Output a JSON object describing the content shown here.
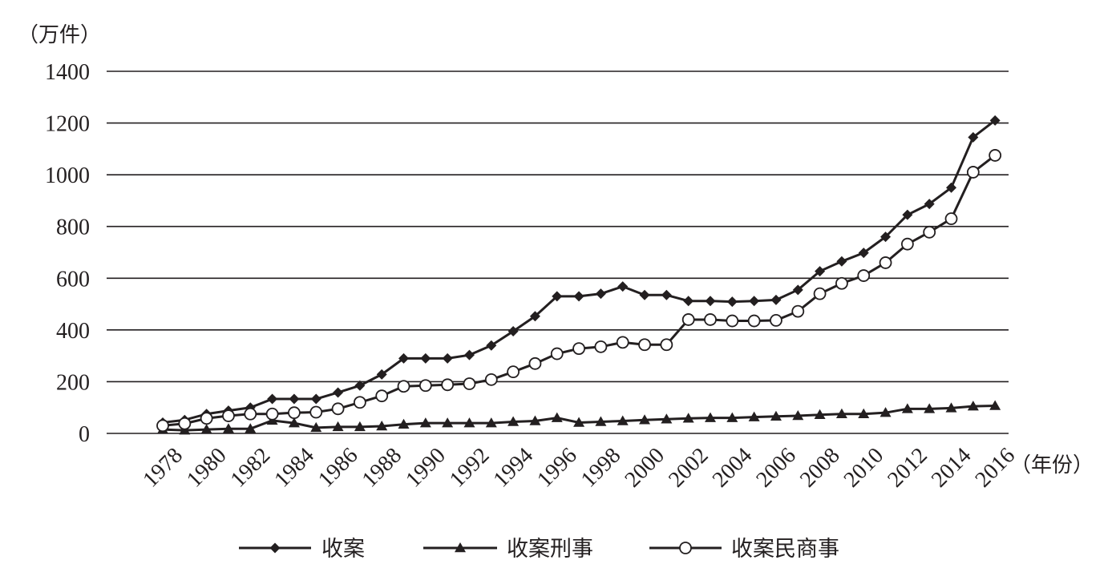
{
  "chart_data": {
    "type": "line",
    "ylabel": "（万件）",
    "xlabel": "（年份）",
    "ylim": [
      0,
      1400
    ],
    "yticks": [
      0,
      200,
      400,
      600,
      800,
      1000,
      1200,
      1400
    ],
    "xticks": [
      "1978",
      "1980",
      "1982",
      "1984",
      "1986",
      "1988",
      "1990",
      "1992",
      "1994",
      "1996",
      "1998",
      "2000",
      "2002",
      "2004",
      "2006",
      "2008",
      "2010",
      "2012",
      "2014",
      "2016"
    ],
    "x": [
      1978,
      1979,
      1980,
      1981,
      1982,
      1983,
      1984,
      1985,
      1986,
      1987,
      1988,
      1989,
      1990,
      1991,
      1992,
      1993,
      1994,
      1995,
      1996,
      1997,
      1998,
      1999,
      2000,
      2001,
      2002,
      2003,
      2004,
      2005,
      2006,
      2007,
      2008,
      2009,
      2010,
      2011,
      2012,
      2013,
      2014,
      2015,
      2016
    ],
    "grid": "horizontal",
    "legend_position": "bottom",
    "series": [
      {
        "name": "收案",
        "marker": "diamond",
        "color": "#231f20",
        "values": [
          42,
          52,
          75,
          88,
          100,
          133,
          133,
          133,
          158,
          185,
          228,
          290,
          290,
          290,
          303,
          340,
          395,
          453,
          530,
          530,
          540,
          568,
          535,
          535,
          512,
          512,
          509,
          512,
          516,
          555,
          627,
          665,
          698,
          760,
          845,
          887,
          950,
          1145,
          1210
        ]
      },
      {
        "name": "收案刑事",
        "marker": "triangle",
        "color": "#231f20",
        "values": [
          15,
          12,
          15,
          18,
          18,
          50,
          40,
          22,
          25,
          25,
          28,
          35,
          40,
          40,
          40,
          40,
          45,
          48,
          60,
          42,
          45,
          48,
          52,
          55,
          58,
          60,
          60,
          63,
          66,
          68,
          72,
          75,
          75,
          80,
          95,
          95,
          98,
          105,
          107
        ]
      },
      {
        "name": "收案民商事",
        "marker": "circle",
        "color": "#231f20",
        "values": [
          30,
          38,
          58,
          68,
          75,
          75,
          80,
          82,
          95,
          120,
          145,
          182,
          185,
          188,
          192,
          208,
          238,
          270,
          308,
          328,
          335,
          352,
          343,
          343,
          440,
          440,
          435,
          435,
          437,
          472,
          540,
          580,
          610,
          660,
          732,
          778,
          830,
          1010,
          1075
        ]
      }
    ]
  }
}
